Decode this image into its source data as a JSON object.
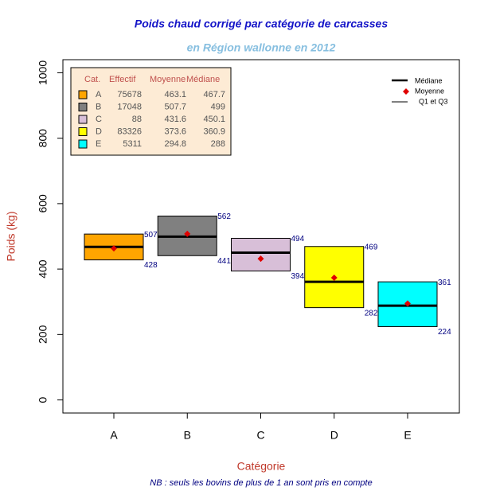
{
  "chart_data": {
    "type": "box",
    "title": "Poids chaud corrigé par catégorie de carcasses",
    "subtitle": "en Région wallonne en 2012",
    "ylabel": "Poids (kg)",
    "xlabel": "Catégorie",
    "note": "NB : seuls les bovins de plus de 1 an sont pris en compte",
    "categories": [
      "A",
      "B",
      "C",
      "D",
      "E"
    ],
    "colors": [
      "#ffa500",
      "#808080",
      "#d8bfd8",
      "#ffff00",
      "#00ffff"
    ],
    "q1": [
      428,
      441,
      394,
      282,
      224
    ],
    "q3": [
      507,
      562,
      494,
      469,
      361
    ],
    "median": [
      467.7,
      499,
      450.1,
      360.9,
      288
    ],
    "mean": [
      463.1,
      507.7,
      431.6,
      373.6,
      294.8
    ],
    "mean_color": "#e00000",
    "ylim": [
      -40,
      1040
    ],
    "yticks": [
      0,
      200,
      400,
      600,
      800,
      1000
    ],
    "table": {
      "header": [
        "Cat.",
        "Effectif",
        "Moyenne",
        "Médiane"
      ],
      "effectif": [
        75678,
        17048,
        88,
        83326,
        5311
      ]
    },
    "legend": [
      "Médiane",
      "Moyenne",
      "Q1 et Q3"
    ]
  }
}
